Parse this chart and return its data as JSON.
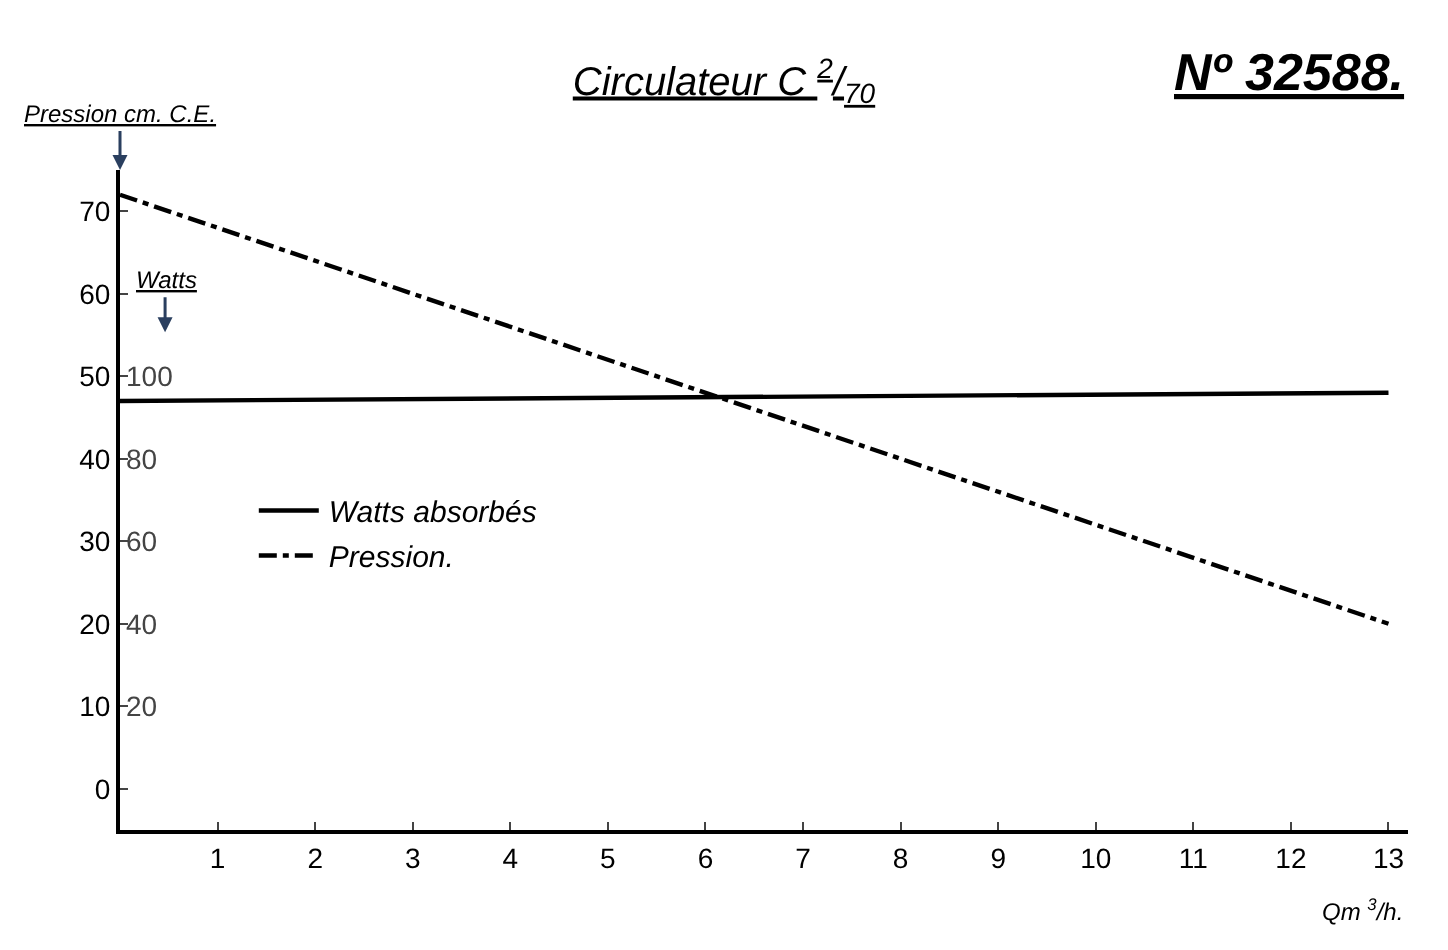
{
  "chart_data": {
    "type": "line",
    "title": "Circulateur C $^{2}$/$_{70}$",
    "annotations": [
      "Nº 32588."
    ],
    "xlabel": "Qm $^{3}$/h.",
    "ylabel": "Pression cm. C.E.",
    "y2label": "Watts",
    "x": [
      0,
      13
    ],
    "series": [
      {
        "name": "Watts absorbés",
        "color": "#000000",
        "values": [
          94,
          96
        ],
        "axis": "y2",
        "line_style": "solid"
      },
      {
        "name": "Pression.",
        "color": "#000000",
        "values": [
          72,
          20
        ],
        "line_style": "dashdot"
      }
    ],
    "xlim": [
      0,
      13.2
    ],
    "xticks": [
      1,
      2,
      3,
      4,
      5,
      6,
      7,
      8,
      9,
      10,
      11,
      12,
      13
    ],
    "ylim": [
      -5,
      75
    ],
    "yticks": [
      0,
      10,
      20,
      30,
      40,
      50,
      60,
      70
    ],
    "y2lim": [
      -10,
      150
    ],
    "y2ticks": [
      20,
      40,
      60,
      80,
      100
    ],
    "legend": "left",
    "marker": "none"
  }
}
